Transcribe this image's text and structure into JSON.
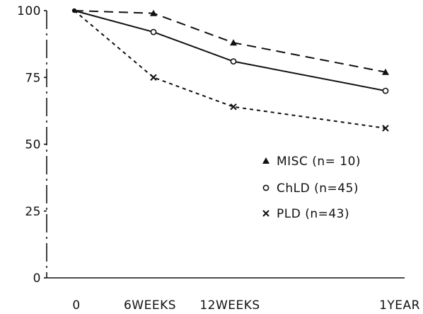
{
  "chart_data": {
    "type": "line",
    "title": "",
    "xlabel": "",
    "ylabel": "",
    "categories": [
      "0",
      "6WEEKS",
      "12WEEKS",
      "1YEAR"
    ],
    "ylim": [
      0,
      100
    ],
    "yticks": [
      0,
      25,
      50,
      75,
      100
    ],
    "ytick_labels": [
      "0",
      "25",
      "50",
      "75",
      "100"
    ],
    "grid": false,
    "legend_position": "lower-right",
    "series": [
      {
        "name": "MISC (n= 10)",
        "marker": "triangle",
        "line": "dashed",
        "values": [
          100,
          99,
          88,
          77
        ]
      },
      {
        "name": "ChLD (n=45)",
        "marker": "circle",
        "line": "solid",
        "values": [
          100,
          92,
          81,
          70
        ]
      },
      {
        "name": "PLD (n=43)",
        "marker": "cross",
        "line": "dotted",
        "values": [
          100,
          75,
          64,
          56
        ]
      }
    ]
  }
}
